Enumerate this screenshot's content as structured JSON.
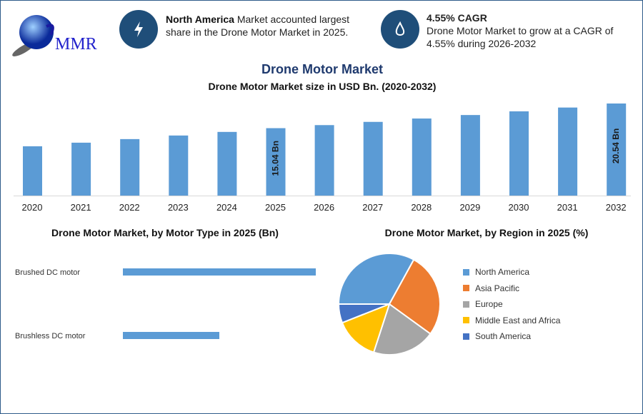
{
  "logo": {
    "text": "MMR"
  },
  "info1": {
    "bold": "North America",
    "text": " Market accounted largest share in the Drone Motor Market in 2025.",
    "icon": "lightning-bolt-icon"
  },
  "info2": {
    "bold": "4.55% CAGR",
    "text": "Drone Motor Market to grow at a CAGR of 4.55% during 2026-2032",
    "icon": "flame-drop-icon"
  },
  "title": "Drone Motor Market",
  "colors": {
    "bar": "#5b9bd5",
    "accent": "#1f4e79",
    "title": "#1f3a6e"
  },
  "chart_data": [
    {
      "type": "bar",
      "title": "Drone Motor Market size in USD Bn. (2020-2032)",
      "categories": [
        "2020",
        "2021",
        "2022",
        "2023",
        "2024",
        "2025",
        "2026",
        "2027",
        "2028",
        "2029",
        "2030",
        "2031",
        "2032"
      ],
      "values": [
        11.0,
        11.8,
        12.6,
        13.4,
        14.2,
        15.04,
        15.72,
        16.44,
        17.19,
        17.97,
        18.79,
        19.64,
        20.54
      ],
      "data_labels": {
        "2025": "15.04 Bn",
        "2032": "20.54 Bn"
      },
      "ylim": [
        0,
        20.54
      ],
      "grid": false
    },
    {
      "type": "bar",
      "orientation": "horizontal",
      "title": "Drone Motor Market, by Motor Type in 2025 (Bn)",
      "categories": [
        "Brushed DC motor",
        "Brushless DC motor"
      ],
      "values": [
        10.0,
        5.0
      ],
      "xlim": [
        0,
        10.0
      ]
    },
    {
      "type": "pie",
      "title": "Drone Motor Market, by Region in 2025 (%)",
      "categories": [
        "North America",
        "Asia Pacific",
        "Europe",
        "Middle East and Africa",
        "South America"
      ],
      "values": [
        33,
        27,
        20,
        14,
        6
      ],
      "colors": [
        "#5b9bd5",
        "#ed7d31",
        "#a5a5a5",
        "#ffc000",
        "#4472c4"
      ],
      "legend": "right"
    }
  ]
}
